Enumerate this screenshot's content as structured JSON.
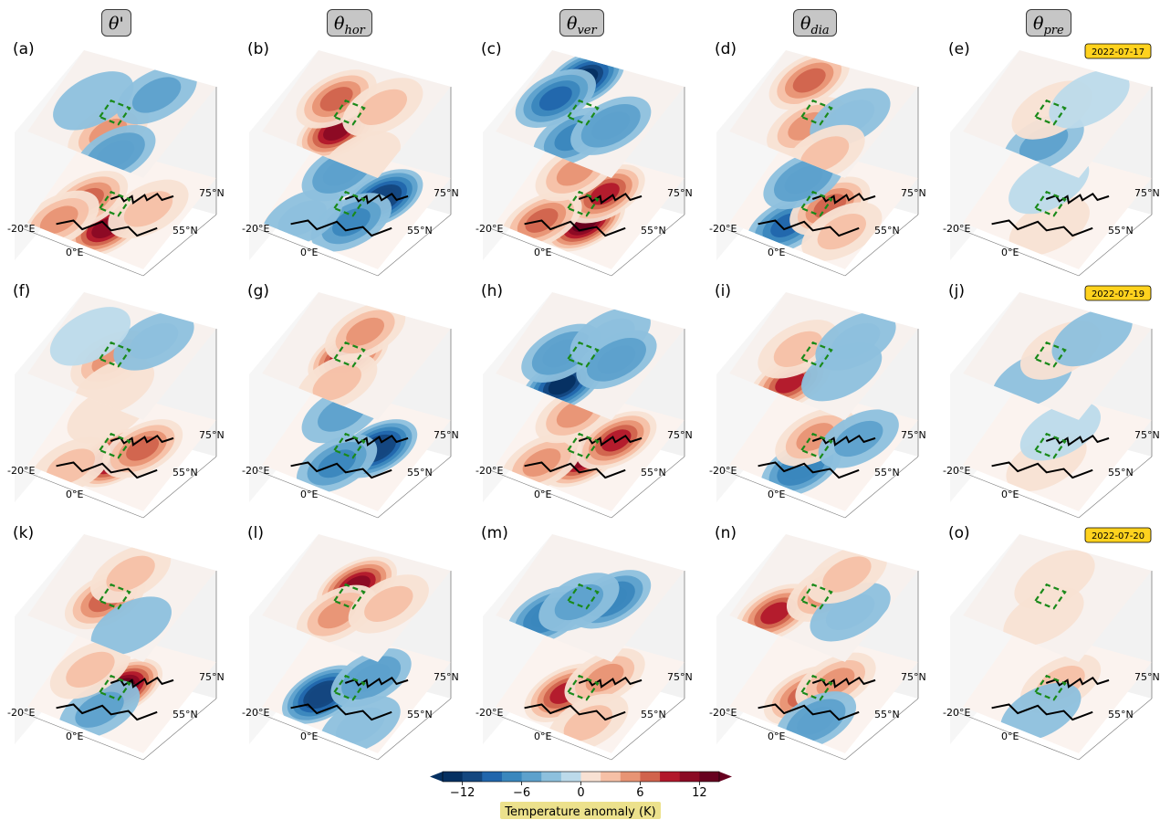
{
  "columns": [
    {
      "symbol": "θ",
      "sub": "",
      "sup": "'"
    },
    {
      "symbol": "θ",
      "sub": "hor",
      "sup": ""
    },
    {
      "symbol": "θ",
      "sub": "ver",
      "sup": ""
    },
    {
      "symbol": "θ",
      "sub": "dia",
      "sup": ""
    },
    {
      "symbol": "θ",
      "sub": "pre",
      "sup": ""
    }
  ],
  "rows": [
    {
      "date": "2022-07-17",
      "labels": [
        "(a)",
        "(b)",
        "(c)",
        "(d)",
        "(e)"
      ]
    },
    {
      "date": "2022-07-19",
      "labels": [
        "(f)",
        "(g)",
        "(h)",
        "(i)",
        "(j)"
      ]
    },
    {
      "date": "2022-07-20",
      "labels": [
        "(k)",
        "(l)",
        "(m)",
        "(n)",
        "(o)"
      ]
    }
  ],
  "axis_ticks": {
    "lon_a": "-20°E",
    "lon_b": "0°E",
    "lat_a": "75°N",
    "lat_b": "55°N"
  },
  "chart_data": {
    "type": "heatmap",
    "description_layers": [
      "upper level",
      "lower level"
    ],
    "colorbar": {
      "label": "Temperature anomaly (K)",
      "ticks": [
        -12,
        -6,
        0,
        6,
        12
      ],
      "tick_labels": [
        "−12",
        "−6",
        "0",
        "6",
        "12"
      ],
      "range": [
        -14,
        14
      ],
      "extend": "both",
      "colormap": "RdBu_r"
    },
    "panels": [
      {
        "id": "a",
        "upper": [
          {
            "x": 0.3,
            "y": 0.55,
            "v": 5
          },
          {
            "x": 0.12,
            "y": 0.7,
            "v": -5
          },
          {
            "x": 0.85,
            "y": 0.7,
            "v": -4
          },
          {
            "x": 0.55,
            "y": 0.3,
            "v": -2
          }
        ],
        "lower": [
          {
            "x": 0.25,
            "y": 0.55,
            "v": 12
          },
          {
            "x": 0.45,
            "y": 0.3,
            "v": 8
          },
          {
            "x": 0.6,
            "y": 0.75,
            "v": 4
          },
          {
            "x": 0.15,
            "y": 0.2,
            "v": 6
          }
        ]
      },
      {
        "id": "b",
        "upper": [
          {
            "x": 0.3,
            "y": 0.5,
            "v": 11
          },
          {
            "x": 0.6,
            "y": 0.35,
            "v": 7
          },
          {
            "x": 0.7,
            "y": 0.7,
            "v": 4
          },
          {
            "x": 0.1,
            "y": 0.8,
            "v": 2
          }
        ],
        "lower": [
          {
            "x": 0.7,
            "y": 0.7,
            "v": -11
          },
          {
            "x": 0.35,
            "y": 0.6,
            "v": -6
          },
          {
            "x": 0.2,
            "y": 0.25,
            "v": -3
          },
          {
            "x": 0.8,
            "y": 0.3,
            "v": -5
          }
        ]
      },
      {
        "id": "c",
        "upper": [
          {
            "x": 0.85,
            "y": 0.35,
            "v": -12
          },
          {
            "x": 0.25,
            "y": 0.55,
            "v": -6
          },
          {
            "x": 0.55,
            "y": 0.25,
            "v": -8
          },
          {
            "x": 0.5,
            "y": 0.75,
            "v": -5
          }
        ],
        "lower": [
          {
            "x": 0.35,
            "y": 0.6,
            "v": 13
          },
          {
            "x": 0.7,
            "y": 0.6,
            "v": 10
          },
          {
            "x": 0.2,
            "y": 0.3,
            "v": 7
          },
          {
            "x": 0.8,
            "y": 0.3,
            "v": 6
          }
        ]
      },
      {
        "id": "d",
        "upper": [
          {
            "x": 0.8,
            "y": 0.3,
            "v": 8
          },
          {
            "x": 0.35,
            "y": 0.5,
            "v": 5
          },
          {
            "x": 0.6,
            "y": 0.75,
            "v": -3
          },
          {
            "x": 0.15,
            "y": 0.75,
            "v": 3
          }
        ],
        "lower": [
          {
            "x": 0.2,
            "y": 0.4,
            "v": -8
          },
          {
            "x": 0.55,
            "y": 0.6,
            "v": 7
          },
          {
            "x": 0.7,
            "y": 0.3,
            "v": -5
          },
          {
            "x": 0.35,
            "y": 0.8,
            "v": 4
          }
        ]
      },
      {
        "id": "e",
        "upper": [
          {
            "x": 0.2,
            "y": 0.6,
            "v": -4
          },
          {
            "x": 0.55,
            "y": 0.5,
            "v": 1
          },
          {
            "x": 0.8,
            "y": 0.7,
            "v": -1
          }
        ],
        "lower": [
          {
            "x": 0.3,
            "y": 0.6,
            "v": 1
          },
          {
            "x": 0.7,
            "y": 0.4,
            "v": -1
          }
        ]
      },
      {
        "id": "f",
        "upper": [
          {
            "x": 0.45,
            "y": 0.5,
            "v": 6
          },
          {
            "x": 0.2,
            "y": 0.65,
            "v": 2
          },
          {
            "x": 0.8,
            "y": 0.7,
            "v": -3
          },
          {
            "x": 0.6,
            "y": 0.25,
            "v": -1
          }
        ],
        "lower": [
          {
            "x": 0.4,
            "y": 0.55,
            "v": 13
          },
          {
            "x": 0.6,
            "y": 0.7,
            "v": 8
          },
          {
            "x": 0.15,
            "y": 0.3,
            "v": 3
          },
          {
            "x": 0.8,
            "y": 0.3,
            "v": 2
          }
        ]
      },
      {
        "id": "g",
        "upper": [
          {
            "x": 0.5,
            "y": 0.5,
            "v": 12
          },
          {
            "x": 0.2,
            "y": 0.55,
            "v": 4
          },
          {
            "x": 0.8,
            "y": 0.5,
            "v": 5
          }
        ],
        "lower": [
          {
            "x": 0.6,
            "y": 0.7,
            "v": -11
          },
          {
            "x": 0.3,
            "y": 0.5,
            "v": -6
          },
          {
            "x": 0.8,
            "y": 0.3,
            "v": -4
          }
        ]
      },
      {
        "id": "h",
        "upper": [
          {
            "x": 0.15,
            "y": 0.5,
            "v": -12
          },
          {
            "x": 0.45,
            "y": 0.35,
            "v": -5
          },
          {
            "x": 0.8,
            "y": 0.6,
            "v": -3
          },
          {
            "x": 0.6,
            "y": 0.75,
            "v": -5
          }
        ],
        "lower": [
          {
            "x": 0.4,
            "y": 0.55,
            "v": 12
          },
          {
            "x": 0.7,
            "y": 0.7,
            "v": 9
          },
          {
            "x": 0.2,
            "y": 0.3,
            "v": 6
          },
          {
            "x": 0.8,
            "y": 0.3,
            "v": 5
          }
        ]
      },
      {
        "id": "i",
        "upper": [
          {
            "x": 0.15,
            "y": 0.45,
            "v": 9
          },
          {
            "x": 0.5,
            "y": 0.35,
            "v": 3
          },
          {
            "x": 0.8,
            "y": 0.7,
            "v": -3
          },
          {
            "x": 0.45,
            "y": 0.75,
            "v": -2
          }
        ],
        "lower": [
          {
            "x": 0.25,
            "y": 0.5,
            "v": -7
          },
          {
            "x": 0.6,
            "y": 0.45,
            "v": 6
          },
          {
            "x": 0.75,
            "y": 0.75,
            "v": -4
          }
        ]
      },
      {
        "id": "j",
        "upper": [
          {
            "x": 0.2,
            "y": 0.5,
            "v": -2
          },
          {
            "x": 0.6,
            "y": 0.55,
            "v": 1
          },
          {
            "x": 0.85,
            "y": 0.7,
            "v": -2
          }
        ],
        "lower": [
          {
            "x": 0.35,
            "y": 0.55,
            "v": 2
          },
          {
            "x": 0.7,
            "y": 0.5,
            "v": -1
          }
        ]
      },
      {
        "id": "k",
        "upper": [
          {
            "x": 0.45,
            "y": 0.45,
            "v": 7
          },
          {
            "x": 0.8,
            "y": 0.5,
            "v": 3
          },
          {
            "x": 0.3,
            "y": 0.75,
            "v": -2
          }
        ],
        "lower": [
          {
            "x": 0.55,
            "y": 0.55,
            "v": 13
          },
          {
            "x": 0.25,
            "y": 0.5,
            "v": -4
          },
          {
            "x": 0.6,
            "y": 0.25,
            "v": 4
          }
        ]
      },
      {
        "id": "l",
        "upper": [
          {
            "x": 0.65,
            "y": 0.5,
            "v": 11
          },
          {
            "x": 0.3,
            "y": 0.5,
            "v": 6
          },
          {
            "x": 0.6,
            "y": 0.8,
            "v": 3
          }
        ],
        "lower": [
          {
            "x": 0.35,
            "y": 0.35,
            "v": -11
          },
          {
            "x": 0.7,
            "y": 0.6,
            "v": -5
          },
          {
            "x": 0.2,
            "y": 0.75,
            "v": -3
          }
        ]
      },
      {
        "id": "m",
        "upper": [
          {
            "x": 0.2,
            "y": 0.35,
            "v": -7
          },
          {
            "x": 0.6,
            "y": 0.7,
            "v": -7
          },
          {
            "x": 0.45,
            "y": 0.5,
            "v": -4
          }
        ],
        "lower": [
          {
            "x": 0.4,
            "y": 0.4,
            "v": 9
          },
          {
            "x": 0.7,
            "y": 0.6,
            "v": 6
          },
          {
            "x": 0.2,
            "y": 0.7,
            "v": 4
          }
        ]
      },
      {
        "id": "n",
        "upper": [
          {
            "x": 0.2,
            "y": 0.3,
            "v": 9
          },
          {
            "x": 0.6,
            "y": 0.55,
            "v": 5
          },
          {
            "x": 0.5,
            "y": 0.8,
            "v": -3
          },
          {
            "x": 0.85,
            "y": 0.6,
            "v": 3
          }
        ],
        "lower": [
          {
            "x": 0.4,
            "y": 0.45,
            "v": 8
          },
          {
            "x": 0.65,
            "y": 0.6,
            "v": 6
          },
          {
            "x": 0.2,
            "y": 0.65,
            "v": -5
          }
        ]
      },
      {
        "id": "o",
        "upper": [
          {
            "x": 0.7,
            "y": 0.45,
            "v": 2
          },
          {
            "x": 0.3,
            "y": 0.55,
            "v": 1
          }
        ],
        "lower": [
          {
            "x": 0.6,
            "y": 0.55,
            "v": 3
          },
          {
            "x": 0.25,
            "y": 0.55,
            "v": -2
          }
        ]
      }
    ]
  }
}
